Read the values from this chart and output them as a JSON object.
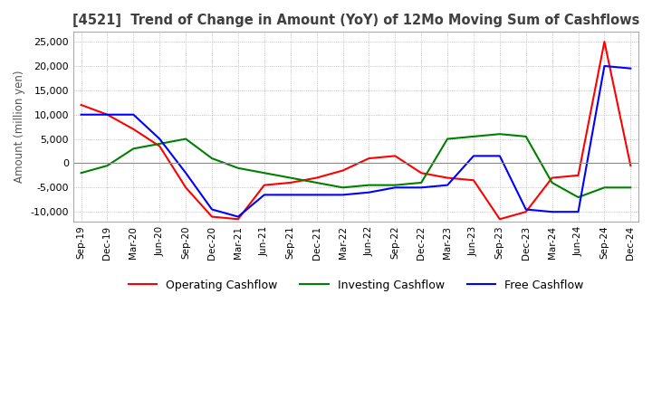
{
  "title": "[4521]  Trend of Change in Amount (YoY) of 12Mo Moving Sum of Cashflows",
  "ylabel": "Amount (million yen)",
  "ylim": [
    -12000,
    27000
  ],
  "yticks": [
    -10000,
    -5000,
    0,
    5000,
    10000,
    15000,
    20000,
    25000
  ],
  "x_labels": [
    "Sep-19",
    "Dec-19",
    "Mar-20",
    "Jun-20",
    "Sep-20",
    "Dec-20",
    "Mar-21",
    "Jun-21",
    "Sep-21",
    "Dec-21",
    "Mar-22",
    "Jun-22",
    "Sep-22",
    "Dec-22",
    "Mar-23",
    "Jun-23",
    "Sep-23",
    "Dec-23",
    "Mar-24",
    "Jun-24",
    "Sep-24",
    "Dec-24"
  ],
  "operating": [
    12000,
    10000,
    7000,
    3500,
    -5000,
    -11000,
    -11500,
    -4500,
    -4000,
    -3000,
    -1500,
    1000,
    1500,
    -2000,
    -3000,
    -3500,
    -11500,
    -10000,
    -3000,
    -2500,
    25000,
    -500
  ],
  "investing": [
    -2000,
    -500,
    3000,
    4000,
    5000,
    1000,
    -1000,
    -2000,
    -3000,
    -4000,
    -5000,
    -4500,
    -4500,
    -4000,
    5000,
    5500,
    6000,
    5500,
    -4000,
    -7000,
    -5000,
    -5000
  ],
  "free": [
    10000,
    10000,
    10000,
    5000,
    -2000,
    -9500,
    -11000,
    -6500,
    -6500,
    -6500,
    -6500,
    -6000,
    -5000,
    -5000,
    -4500,
    1500,
    1500,
    -9500,
    -10000,
    -10000,
    20000,
    19500
  ],
  "operating_color": "#ff0000",
  "investing_color": "#008000",
  "free_color": "#0000ff",
  "background_color": "#ffffff",
  "grid_color": "#b0b0b0",
  "title_color": "#404040",
  "legend_labels": [
    "Operating Cashflow",
    "Investing Cashflow",
    "Free Cashflow"
  ]
}
